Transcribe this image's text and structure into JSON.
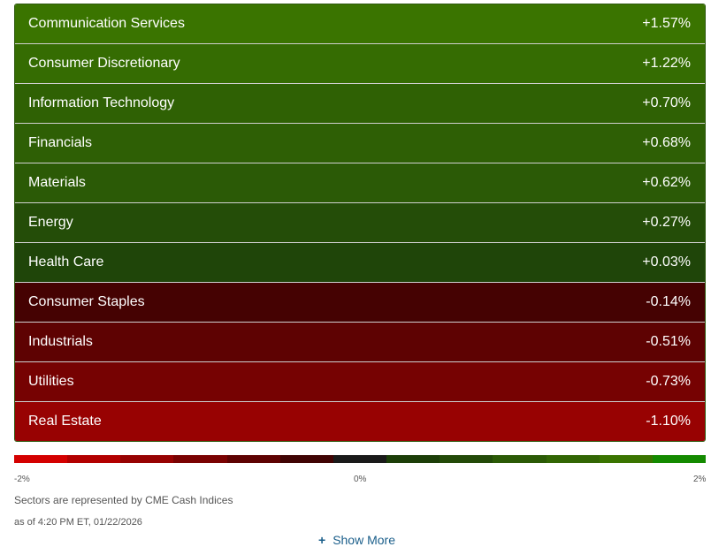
{
  "sectors": [
    {
      "name": "Communication Services",
      "change": "+1.57%",
      "color": "#3a7400"
    },
    {
      "name": "Consumer Discretionary",
      "change": "+1.22%",
      "color": "#356c02"
    },
    {
      "name": "Information Technology",
      "change": "+0.70%",
      "color": "#2f6104"
    },
    {
      "name": "Financials",
      "change": "+0.68%",
      "color": "#2e5f05"
    },
    {
      "name": "Materials",
      "change": "+0.62%",
      "color": "#2b5a06"
    },
    {
      "name": "Energy",
      "change": "+0.27%",
      "color": "#244d08"
    },
    {
      "name": "Health Care",
      "change": "+0.03%",
      "color": "#1f4509"
    },
    {
      "name": "Consumer Staples",
      "change": "-0.14%",
      "color": "#450202"
    },
    {
      "name": "Industrials",
      "change": "-0.51%",
      "color": "#5e0202"
    },
    {
      "name": "Utilities",
      "change": "-0.73%",
      "color": "#760202"
    },
    {
      "name": "Real Estate",
      "change": "-1.10%",
      "color": "#980202"
    }
  ],
  "scale": {
    "colors": [
      "#d40000",
      "#b30000",
      "#970202",
      "#7a0202",
      "#5e0202",
      "#400404",
      "#1a1a1a",
      "#1c3e08",
      "#234a08",
      "#2b5a06",
      "#326604",
      "#3a7400",
      "#148a00"
    ],
    "min_label": "-2%",
    "mid_label": "0%",
    "max_label": "2%"
  },
  "note": "Sectors are represented by CME Cash Indices",
  "timestamp": "as of 4:20 PM ET, 01/22/2026",
  "show_more": {
    "icon": "plus-icon",
    "label": "Show More"
  }
}
